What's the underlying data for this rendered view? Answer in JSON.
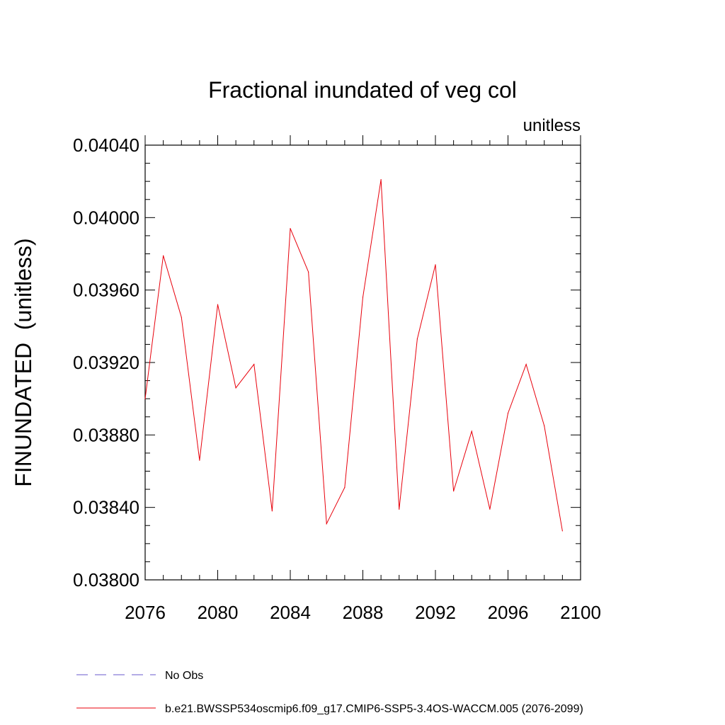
{
  "chart_data": {
    "type": "line",
    "title": "Fractional inundated of veg col",
    "units_label": "unitless",
    "ylabel": "FINUNDATED  (unitless)",
    "xlabel": "",
    "xlim": [
      2076,
      2100
    ],
    "ylim": [
      0.038,
      0.0404
    ],
    "x_ticks": [
      "2076",
      "2080",
      "2084",
      "2088",
      "2092",
      "2096",
      "2100"
    ],
    "y_ticks": [
      "0.03800",
      "0.03840",
      "0.03880",
      "0.03920",
      "0.03960",
      "0.04000",
      "0.04040"
    ],
    "grid": false,
    "legend_position": "bottom",
    "series": [
      {
        "name": "No Obs",
        "color": "#6a5acd",
        "dash": "dashed",
        "x": [],
        "values": []
      },
      {
        "name": "b.e21.BWSSP534oscmip6.f09_g17.CMIP6-SSP5-3.4OS-WACCM.005 (2076-2099)",
        "color": "#e8000b",
        "dash": "solid",
        "x": [
          2076,
          2077,
          2078,
          2079,
          2080,
          2081,
          2082,
          2083,
          2084,
          2085,
          2086,
          2087,
          2088,
          2089,
          2090,
          2091,
          2092,
          2093,
          2094,
          2095,
          2096,
          2097,
          2098,
          2099
        ],
        "values": [
          0.039,
          0.03979,
          0.03945,
          0.03866,
          0.03952,
          0.03906,
          0.03919,
          0.03838,
          0.03994,
          0.0397,
          0.03831,
          0.03851,
          0.03956,
          0.04021,
          0.03839,
          0.03933,
          0.03974,
          0.03849,
          0.03882,
          0.03839,
          0.03892,
          0.03919,
          0.03885,
          0.03827
        ]
      }
    ]
  }
}
